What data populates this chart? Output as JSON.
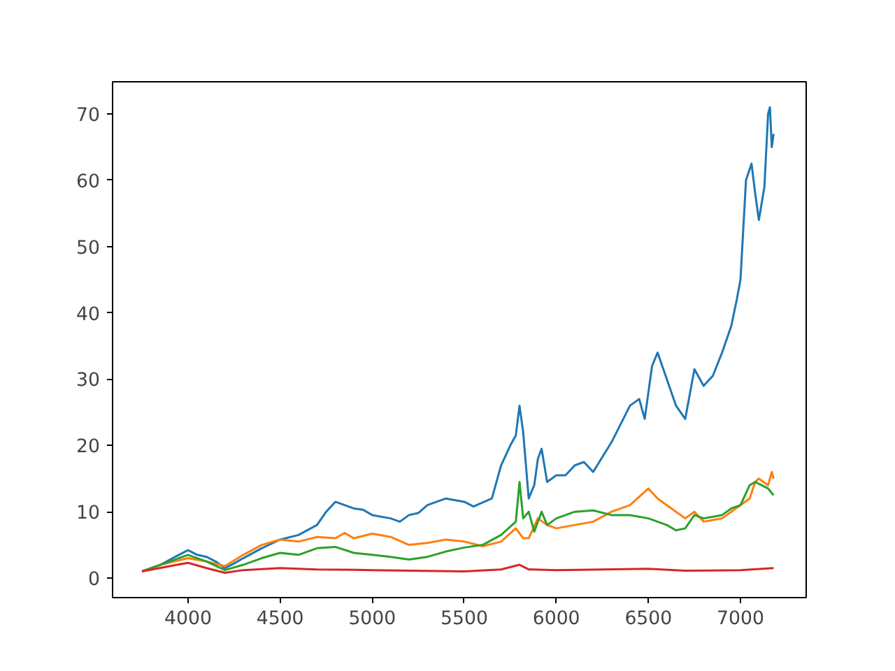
{
  "chart_data": {
    "type": "line",
    "xlim": [
      3590,
      7357
    ],
    "ylim": [
      -2.95,
      74.85
    ],
    "xticks": [
      4000,
      4500,
      5000,
      5500,
      6000,
      6500,
      7000
    ],
    "yticks": [
      0,
      10,
      20,
      30,
      40,
      50,
      60,
      70
    ],
    "grid": false,
    "series": [
      {
        "color": "#1f77b4",
        "x": [
          3750,
          3850,
          3950,
          4000,
          4050,
          4100,
          4150,
          4200,
          4250,
          4300,
          4400,
          4500,
          4600,
          4700,
          4750,
          4800,
          4850,
          4900,
          4950,
          5000,
          5100,
          5150,
          5200,
          5250,
          5300,
          5400,
          5500,
          5550,
          5650,
          5700,
          5750,
          5780,
          5800,
          5820,
          5850,
          5880,
          5900,
          5920,
          5950,
          6000,
          6050,
          6100,
          6150,
          6200,
          6300,
          6400,
          6450,
          6480,
          6520,
          6550,
          6600,
          6650,
          6700,
          6750,
          6800,
          6850,
          6900,
          6950,
          6980,
          7000,
          7030,
          7060,
          7080,
          7100,
          7130,
          7150,
          7160,
          7170,
          7180
        ],
        "values": [
          1.0,
          2,
          3.5,
          4.2,
          3.5,
          3.2,
          2.5,
          1.5,
          2.2,
          3,
          4.5,
          5.8,
          6.5,
          8,
          10,
          11.5,
          11,
          10.5,
          10.3,
          9.5,
          9,
          8.5,
          9.5,
          9.8,
          11,
          12,
          11.5,
          10.8,
          12,
          17,
          20,
          21.5,
          26,
          22,
          12,
          14,
          18,
          19.5,
          14.5,
          15.5,
          15.5,
          17,
          17.5,
          16,
          20.5,
          26,
          27,
          24,
          32,
          34,
          30,
          26,
          24,
          31.5,
          29,
          30.5,
          34,
          38,
          42,
          45,
          60,
          62.5,
          58,
          54,
          59,
          70,
          71,
          65,
          67
        ]
      },
      {
        "color": "#ff7f0e",
        "x": [
          3750,
          3850,
          4000,
          4100,
          4200,
          4300,
          4400,
          4500,
          4600,
          4700,
          4800,
          4850,
          4900,
          5000,
          5100,
          5200,
          5300,
          5400,
          5500,
          5600,
          5700,
          5780,
          5820,
          5850,
          5900,
          5950,
          6000,
          6100,
          6200,
          6300,
          6400,
          6500,
          6550,
          6600,
          6700,
          6750,
          6800,
          6900,
          6950,
          7000,
          7050,
          7080,
          7100,
          7150,
          7170,
          7180
        ],
        "values": [
          1,
          2,
          3,
          2.5,
          1.8,
          3.5,
          5,
          5.8,
          5.5,
          6.2,
          6,
          6.8,
          6,
          6.7,
          6.2,
          5,
          5.3,
          5.8,
          5.5,
          4.8,
          5.5,
          7.5,
          6,
          6,
          9,
          8,
          7.5,
          8,
          8.5,
          10,
          11,
          13.5,
          12,
          11,
          9,
          10,
          8.5,
          9,
          10,
          11,
          12,
          14.5,
          15,
          14,
          16,
          15
        ]
      },
      {
        "color": "#2ca02c",
        "x": [
          3750,
          3900,
          4000,
          4100,
          4200,
          4300,
          4400,
          4500,
          4600,
          4700,
          4800,
          4900,
          5000,
          5100,
          5200,
          5300,
          5400,
          5500,
          5600,
          5700,
          5780,
          5800,
          5820,
          5850,
          5880,
          5920,
          5950,
          6000,
          6100,
          6200,
          6300,
          6400,
          6500,
          6550,
          6600,
          6650,
          6700,
          6750,
          6800,
          6900,
          6950,
          7000,
          7050,
          7080,
          7150,
          7180
        ],
        "values": [
          1,
          2.5,
          3.5,
          2.5,
          1.2,
          2,
          3,
          3.8,
          3.5,
          4.5,
          4.7,
          3.8,
          3.5,
          3.2,
          2.8,
          3.2,
          4,
          4.6,
          5,
          6.5,
          8.5,
          14.5,
          9,
          10,
          7,
          10,
          8,
          9,
          10,
          10.2,
          9.5,
          9.5,
          9,
          8.5,
          8,
          7.2,
          7.5,
          9.5,
          9,
          9.5,
          10.5,
          11,
          14,
          14.5,
          13.5,
          12.5
        ]
      },
      {
        "color": "#d62728",
        "x": [
          3750,
          3900,
          4000,
          4100,
          4200,
          4300,
          4500,
          4700,
          5000,
          5500,
          5700,
          5800,
          5850,
          6000,
          6500,
          6700,
          7000,
          7180
        ],
        "values": [
          1,
          1.8,
          2.3,
          1.5,
          0.8,
          1.2,
          1.5,
          1.3,
          1.2,
          1,
          1.3,
          2,
          1.3,
          1.2,
          1.4,
          1.1,
          1.2,
          1.5
        ]
      }
    ]
  }
}
